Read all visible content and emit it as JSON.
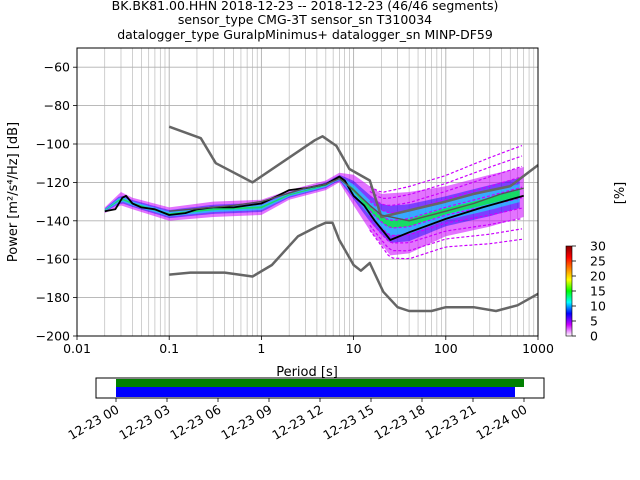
{
  "title": {
    "line1": "BK.BK81.00.HHN   2018-12-23 -- 2018-12-23  (46/46 segments)",
    "line2": "sensor_type CMG-3T sensor_sn T310034",
    "line3": "datalogger_type GuralpMinimus+ datalogger_sn MINP-DF59"
  },
  "colorbar": {
    "label": "[%]",
    "ticks": [
      "30",
      "25",
      "20",
      "15",
      "10",
      "5",
      "0"
    ],
    "colors": [
      "#ffffff",
      "#cc00ff",
      "#0000ff",
      "#00ffff",
      "#00ff00",
      "#ffff00",
      "#ff8000",
      "#ff0000",
      "#880000"
    ]
  },
  "timeline": {
    "ticks": [
      "12-23 00",
      "12-23 03",
      "12-23 06",
      "12-23 09",
      "12-23 12",
      "12-23 15",
      "12-23 18",
      "12-23 21",
      "12-24 00"
    ],
    "bar_colors": {
      "coverage": "#008000",
      "segments": "#0000ff"
    }
  },
  "chart_data": {
    "type": "line",
    "xlabel": "Period [s]",
    "ylabel": "Power [m²/s⁴/Hz] [dB]",
    "xscale": "log",
    "xlim": [
      0.01,
      1000
    ],
    "ylim": [
      -200,
      -50
    ],
    "x_ticks": [
      "0.01",
      "0.1",
      "1",
      "10",
      "100",
      "1000"
    ],
    "y_ticks": [
      "-200",
      "-180",
      "-160",
      "-140",
      "-120",
      "-100",
      "-80",
      "-60"
    ],
    "grid": true,
    "series": [
      {
        "role": "noise-model-high",
        "color": "#666666",
        "points": [
          [
            0.1,
            -91
          ],
          [
            0.22,
            -97
          ],
          [
            0.32,
            -110
          ],
          [
            0.8,
            -120
          ],
          [
            3.8,
            -98
          ],
          [
            4.6,
            -96
          ],
          [
            6.5,
            -101
          ],
          [
            9,
            -113
          ],
          [
            15,
            -119
          ],
          [
            20,
            -138
          ],
          [
            100,
            -130
          ],
          [
            200,
            -126
          ],
          [
            500,
            -122
          ],
          [
            1000,
            -111
          ]
        ]
      },
      {
        "role": "noise-model-low",
        "color": "#666666",
        "points": [
          [
            0.1,
            -168
          ],
          [
            0.17,
            -167
          ],
          [
            0.4,
            -167
          ],
          [
            0.8,
            -169
          ],
          [
            1.3,
            -163
          ],
          [
            2.5,
            -148
          ],
          [
            4,
            -143
          ],
          [
            5,
            -141
          ],
          [
            5.9,
            -141
          ],
          [
            7,
            -150
          ],
          [
            10,
            -163
          ],
          [
            12,
            -166
          ],
          [
            15,
            -162
          ],
          [
            21,
            -177
          ],
          [
            30,
            -185
          ],
          [
            40,
            -187
          ],
          [
            70,
            -187
          ],
          [
            100,
            -185
          ],
          [
            200,
            -185
          ],
          [
            350,
            -187
          ],
          [
            600,
            -184
          ],
          [
            1000,
            -178
          ]
        ]
      },
      {
        "role": "mode",
        "color": "#000000",
        "points": [
          [
            0.02,
            -135
          ],
          [
            0.026,
            -134
          ],
          [
            0.031,
            -128
          ],
          [
            0.034,
            -127
          ],
          [
            0.04,
            -131
          ],
          [
            0.05,
            -133
          ],
          [
            0.07,
            -134
          ],
          [
            0.1,
            -137
          ],
          [
            0.15,
            -136
          ],
          [
            0.2,
            -134
          ],
          [
            0.3,
            -133
          ],
          [
            0.5,
            -133
          ],
          [
            1,
            -131
          ],
          [
            1.5,
            -127
          ],
          [
            2,
            -124
          ],
          [
            3,
            -123
          ],
          [
            5,
            -121
          ],
          [
            7,
            -117
          ],
          [
            8,
            -119
          ],
          [
            10,
            -127
          ],
          [
            13,
            -132
          ],
          [
            17,
            -140
          ],
          [
            25,
            -150
          ],
          [
            40,
            -146
          ],
          [
            100,
            -139
          ],
          [
            250,
            -133
          ],
          [
            700,
            -127
          ]
        ]
      },
      {
        "role": "mean",
        "color": "#555555",
        "points": [
          [
            0.1,
            -135
          ],
          [
            0.5,
            -132
          ],
          [
            1,
            -130
          ],
          [
            3,
            -123
          ],
          [
            5,
            -121
          ],
          [
            7,
            -118
          ],
          [
            10,
            -124
          ],
          [
            15,
            -132
          ],
          [
            20,
            -137
          ],
          [
            40,
            -140
          ],
          [
            100,
            -135
          ],
          [
            200,
            -131
          ],
          [
            400,
            -126
          ],
          [
            700,
            -123
          ]
        ]
      }
    ],
    "density_band": {
      "upper": [
        [
          0.02,
          -133
        ],
        [
          0.03,
          -125
        ],
        [
          0.04,
          -128
        ],
        [
          0.1,
          -133
        ],
        [
          0.3,
          -130
        ],
        [
          1,
          -129
        ],
        [
          2,
          -124
        ],
        [
          5,
          -119
        ],
        [
          7,
          -115
        ],
        [
          10,
          -116
        ],
        [
          15,
          -122
        ],
        [
          20,
          -126
        ],
        [
          40,
          -125
        ],
        [
          100,
          -122
        ],
        [
          300,
          -116
        ],
        [
          700,
          -112
        ]
      ],
      "lower": [
        [
          0.02,
          -136
        ],
        [
          0.03,
          -132
        ],
        [
          0.04,
          -134
        ],
        [
          0.1,
          -140
        ],
        [
          0.3,
          -138
        ],
        [
          1,
          -137
        ],
        [
          2,
          -129
        ],
        [
          5,
          -124
        ],
        [
          7,
          -120
        ],
        [
          10,
          -132
        ],
        [
          15,
          -145
        ],
        [
          25,
          -158
        ],
        [
          40,
          -157
        ],
        [
          100,
          -148
        ],
        [
          300,
          -143
        ],
        [
          700,
          -138
        ]
      ]
    },
    "sparse_traces_count": 10
  }
}
